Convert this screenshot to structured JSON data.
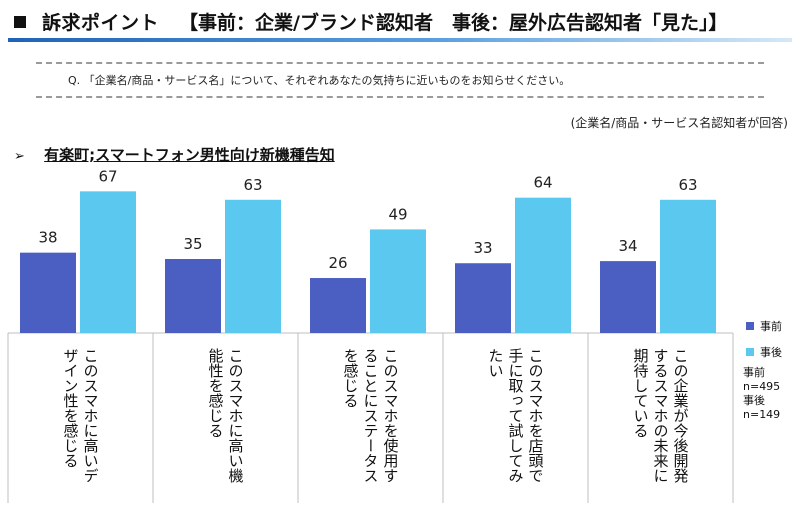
{
  "header": {
    "title": "訴求ポイント",
    "subtitle": "【事前：企業/ブランド認知者　事後：屋外広告認知者「見た」】"
  },
  "question": "Q. 「企業名/商品・サービス名」について、それぞれあなたの気持ちに近いものをお知らせください。",
  "note": "(企業名/商品・サービス名認知者が回答)",
  "section": {
    "arrow": "➢",
    "label": "有楽町;スマートフォン男性向け新機種告知"
  },
  "colors": {
    "before": "#4a5fc1",
    "after": "#5bc8ef",
    "axis": "#bfbfbf"
  },
  "chart_data": {
    "type": "bar",
    "categories": [
      [
        "このスマホに高いデ",
        "ザイン性を感じる"
      ],
      [
        "このスマホに高い機",
        "能性を感じる"
      ],
      [
        "このスマホを使用す",
        "ることにステータス",
        "を感じる"
      ],
      [
        "このスマホを店頭で",
        "手に取って試してみ",
        "たい"
      ],
      [
        "この企業が今後開発",
        "するスマホの未来に",
        "期待している"
      ]
    ],
    "series": [
      {
        "name": "事前",
        "values": [
          38,
          35,
          26,
          33,
          34
        ]
      },
      {
        "name": "事後",
        "values": [
          67,
          63,
          49,
          64,
          63
        ]
      }
    ],
    "ylim": [
      0,
      70
    ]
  },
  "sample": {
    "before": "事前n=495",
    "after": "事後n=149"
  }
}
